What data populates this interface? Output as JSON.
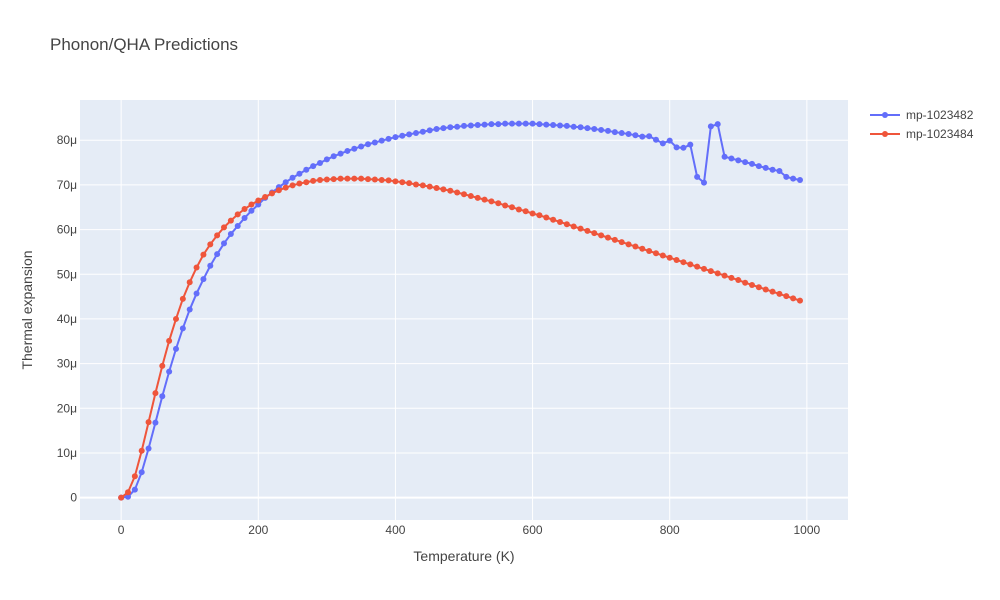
{
  "chart_data": {
    "type": "line",
    "title": "Phonon/QHA Predictions",
    "xlabel": "Temperature (K)",
    "ylabel": "Thermal expansion",
    "xlim": [
      -60,
      1060
    ],
    "ylim": [
      -5e-06,
      8.9e-05
    ],
    "x_ticks": [
      0,
      200,
      400,
      600,
      800,
      1000
    ],
    "x_tick_labels": [
      "0",
      "200",
      "400",
      "600",
      "800",
      "1000"
    ],
    "y_ticks": [
      0,
      1e-05,
      2e-05,
      3e-05,
      4e-05,
      5e-05,
      6e-05,
      7e-05,
      8e-05
    ],
    "y_tick_labels": [
      "0",
      "10μ",
      "20μ",
      "30μ",
      "40μ",
      "50μ",
      "60μ",
      "70μ",
      "80μ"
    ],
    "grid": true,
    "legend_position": "top-right",
    "x": [
      0,
      10,
      20,
      30,
      40,
      50,
      60,
      70,
      80,
      90,
      100,
      110,
      120,
      130,
      140,
      150,
      160,
      170,
      180,
      190,
      200,
      210,
      220,
      230,
      240,
      250,
      260,
      270,
      280,
      290,
      300,
      310,
      320,
      330,
      340,
      350,
      360,
      370,
      380,
      390,
      400,
      410,
      420,
      430,
      440,
      450,
      460,
      470,
      480,
      490,
      500,
      510,
      520,
      530,
      540,
      550,
      560,
      570,
      580,
      590,
      600,
      610,
      620,
      630,
      640,
      650,
      660,
      670,
      680,
      690,
      700,
      710,
      720,
      730,
      740,
      750,
      760,
      770,
      780,
      790,
      800,
      810,
      820,
      830,
      840,
      850,
      860,
      870,
      880,
      890,
      900,
      910,
      920,
      930,
      940,
      950,
      960,
      970,
      980,
      990
    ],
    "series": [
      {
        "name": "mp-1023482",
        "color": "#636efa",
        "values": [
          0,
          2e-07,
          1.8e-06,
          5.7e-06,
          1.1e-05,
          1.68e-05,
          2.27e-05,
          2.82e-05,
          3.33e-05,
          3.79e-05,
          4.21e-05,
          4.57e-05,
          4.89e-05,
          5.19e-05,
          5.45e-05,
          5.69e-05,
          5.9e-05,
          6.08e-05,
          6.26e-05,
          6.42e-05,
          6.56e-05,
          6.71e-05,
          6.83e-05,
          6.95e-05,
          7.06e-05,
          7.16e-05,
          7.25e-05,
          7.34e-05,
          7.42e-05,
          7.49e-05,
          7.57e-05,
          7.64e-05,
          7.7e-05,
          7.76e-05,
          7.81e-05,
          7.86e-05,
          7.91e-05,
          7.95e-05,
          7.99e-05,
          8.03e-05,
          8.07e-05,
          8.1e-05,
          8.13e-05,
          8.16e-05,
          8.19e-05,
          8.22e-05,
          8.25e-05,
          8.27e-05,
          8.29e-05,
          8.3e-05,
          8.32e-05,
          8.33e-05,
          8.34e-05,
          8.35e-05,
          8.36e-05,
          8.36e-05,
          8.37e-05,
          8.37e-05,
          8.37e-05,
          8.37e-05,
          8.37e-05,
          8.36e-05,
          8.35e-05,
          8.34e-05,
          8.33e-05,
          8.32e-05,
          8.3e-05,
          8.29e-05,
          8.27e-05,
          8.25e-05,
          8.23e-05,
          8.21e-05,
          8.18e-05,
          8.16e-05,
          8.14e-05,
          8.11e-05,
          8.08e-05,
          8.09e-05,
          8.01e-05,
          7.93e-05,
          7.99e-05,
          7.84e-05,
          7.83e-05,
          7.9e-05,
          7.18e-05,
          7.05e-05,
          8.31e-05,
          8.36e-05,
          7.63e-05,
          7.59e-05,
          7.55e-05,
          7.51e-05,
          7.47e-05,
          7.42e-05,
          7.38e-05,
          7.34e-05,
          7.31e-05,
          7.18e-05,
          7.14e-05,
          7.11e-05
        ]
      },
      {
        "name": "mp-1023484",
        "color": "#ef553b",
        "values": [
          0,
          1.2e-06,
          4.8e-06,
          1.05e-05,
          1.69e-05,
          2.34e-05,
          2.95e-05,
          3.51e-05,
          4e-05,
          4.45e-05,
          4.82e-05,
          5.15e-05,
          5.44e-05,
          5.67e-05,
          5.87e-05,
          6.05e-05,
          6.2e-05,
          6.34e-05,
          6.46e-05,
          6.56e-05,
          6.65e-05,
          6.73e-05,
          6.81e-05,
          6.88e-05,
          6.94e-05,
          6.99e-05,
          7.03e-05,
          7.06e-05,
          7.09e-05,
          7.11e-05,
          7.12e-05,
          7.13e-05,
          7.14e-05,
          7.14e-05,
          7.14e-05,
          7.14e-05,
          7.13e-05,
          7.12e-05,
          7.11e-05,
          7.1e-05,
          7.08e-05,
          7.06e-05,
          7.04e-05,
          7.01e-05,
          6.99e-05,
          6.96e-05,
          6.93e-05,
          6.9e-05,
          6.87e-05,
          6.83e-05,
          6.79e-05,
          6.75e-05,
          6.71e-05,
          6.67e-05,
          6.63e-05,
          6.59e-05,
          6.54e-05,
          6.5e-05,
          6.45e-05,
          6.41e-05,
          6.36e-05,
          6.32e-05,
          6.27e-05,
          6.22e-05,
          6.17e-05,
          6.12e-05,
          6.07e-05,
          6.02e-05,
          5.97e-05,
          5.92e-05,
          5.87e-05,
          5.82e-05,
          5.77e-05,
          5.72e-05,
          5.67e-05,
          5.62e-05,
          5.57e-05,
          5.52e-05,
          5.47e-05,
          5.42e-05,
          5.37e-05,
          5.32e-05,
          5.27e-05,
          5.22e-05,
          5.17e-05,
          5.12e-05,
          5.07e-05,
          5.02e-05,
          4.97e-05,
          4.92e-05,
          4.87e-05,
          4.81e-05,
          4.76e-05,
          4.71e-05,
          4.66e-05,
          4.61e-05,
          4.56e-05,
          4.51e-05,
          4.46e-05,
          4.41e-05
        ]
      }
    ]
  }
}
